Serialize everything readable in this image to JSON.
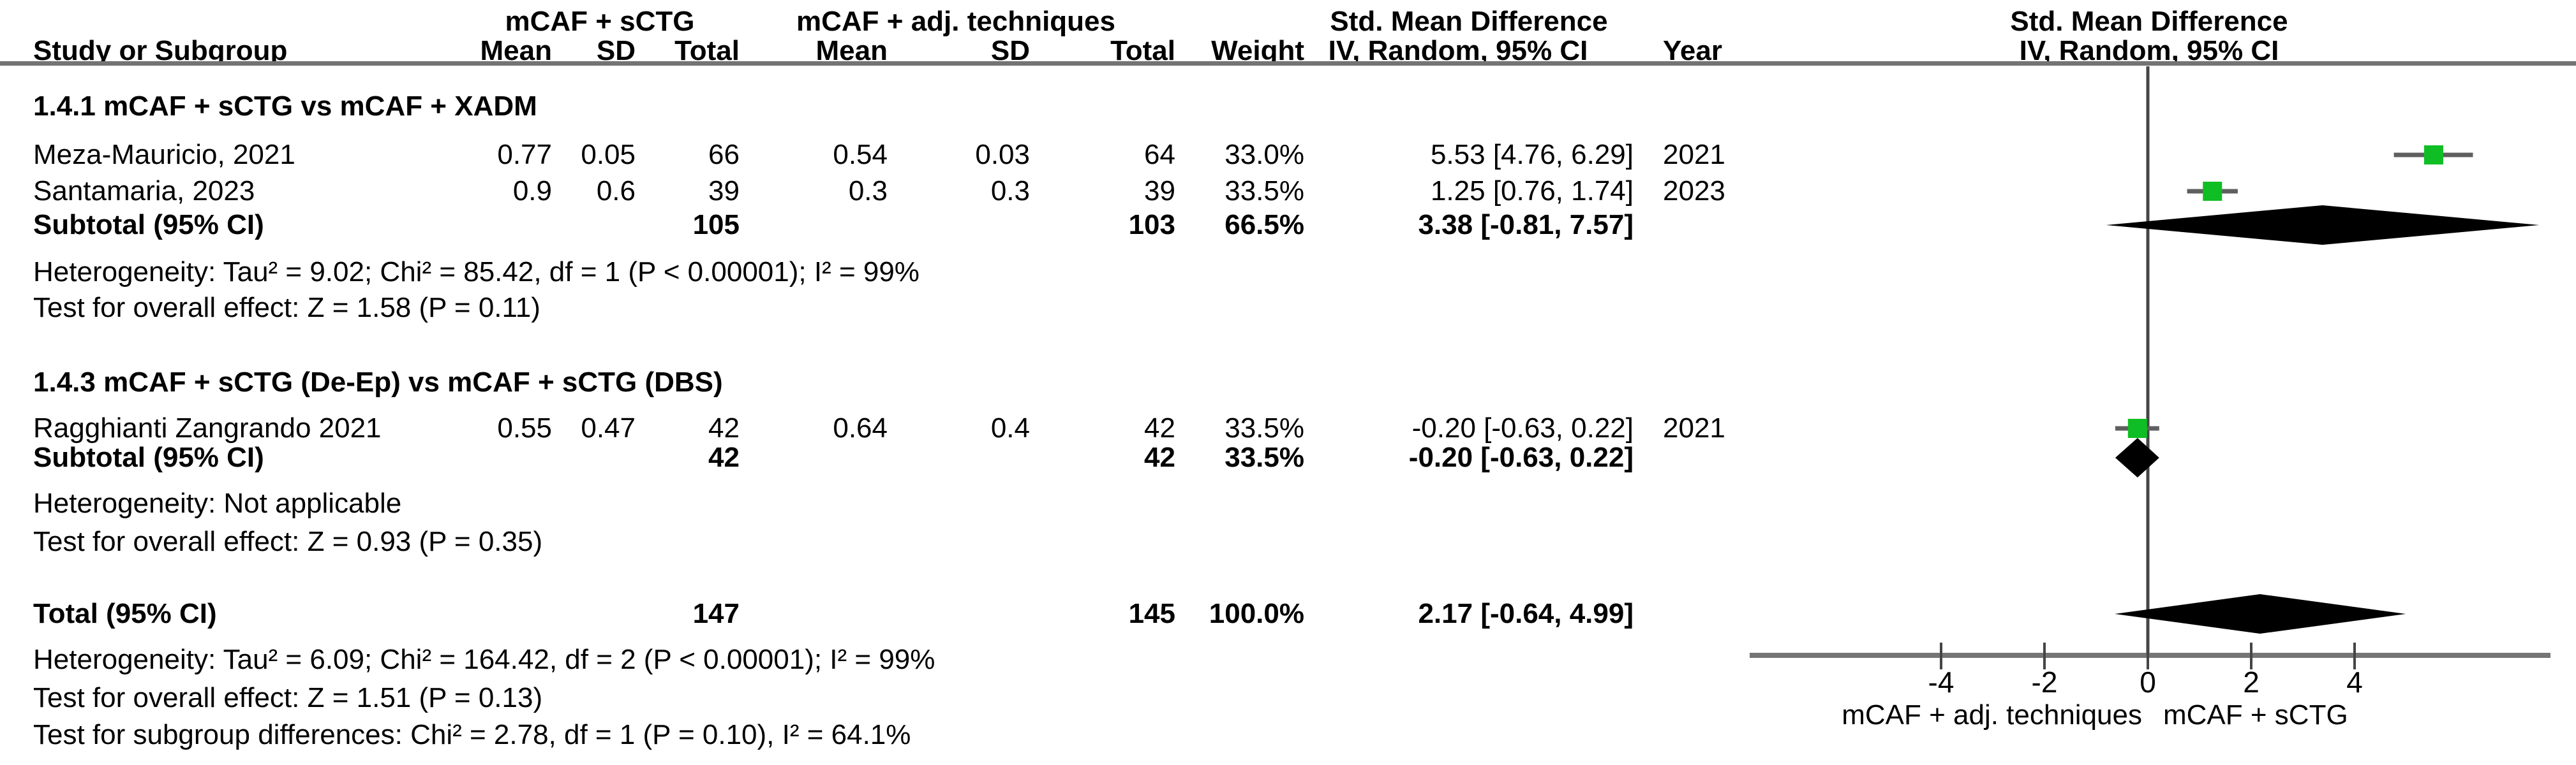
{
  "header": {
    "group1": "mCAF + sCTG",
    "group2": "mCAF + adj. techniques",
    "smd_table": "Std. Mean Difference",
    "smd_plot": "Std. Mean Difference",
    "col_study": "Study or Subgroup",
    "col_mean1": "Mean",
    "col_sd1": "SD",
    "col_total1": "Total",
    "col_mean2": "Mean",
    "col_sd2": "SD",
    "col_total2": "Total",
    "col_weight": "Weight",
    "col_iv": "IV, Random, 95% CI",
    "col_year": "Year",
    "col_iv_plot": "IV, Random, 95% CI"
  },
  "table": {
    "heading_141": "1.4.1 mCAF + sCTG vs mCAF + XADM",
    "meza": {
      "study": "Meza-Mauricio, 2021",
      "mean1": "0.77",
      "sd1": "0.05",
      "total1": "66",
      "mean2": "0.54",
      "sd2": "0.03",
      "total2": "64",
      "weight": "33.0%",
      "ci": "5.53 [4.76, 6.29]",
      "year": "2021"
    },
    "santamaria": {
      "study": "Santamaria, 2023",
      "mean1": "0.9",
      "sd1": "0.6",
      "total1": "39",
      "mean2": "0.3",
      "sd2": "0.3",
      "total2": "39",
      "weight": "33.5%",
      "ci": "1.25 [0.76, 1.74]",
      "year": "2023"
    },
    "subtotal1": {
      "label": "Subtotal (95% CI)",
      "total1": "105",
      "total2": "103",
      "weight": "66.5%",
      "ci": "3.38 [-0.81, 7.57]"
    },
    "het1": "Heterogeneity: Tau² = 9.02; Chi² = 85.42, df = 1 (P < 0.00001); I² = 99%",
    "test1": "Test for overall effect: Z = 1.58 (P = 0.11)",
    "heading_143": "1.4.3 mCAF + sCTG (De-Ep) vs mCAF + sCTG (DBS)",
    "ragghianti": {
      "study": "Ragghianti Zangrando 2021",
      "mean1": "0.55",
      "sd1": "0.47",
      "total1": "42",
      "mean2": "0.64",
      "sd2": "0.4",
      "total2": "42",
      "weight": "33.5%",
      "ci": "-0.20 [-0.63, 0.22]",
      "year": "2021"
    },
    "subtotal2": {
      "label": "Subtotal (95% CI)",
      "total1": "42",
      "total2": "42",
      "weight": "33.5%",
      "ci": "-0.20 [-0.63, 0.22]"
    },
    "het2": "Heterogeneity: Not applicable",
    "test2": "Test for overall effect: Z = 0.93 (P = 0.35)",
    "total_row": {
      "label": "Total (95% CI)",
      "total1": "147",
      "total2": "145",
      "weight": "100.0%",
      "ci": "2.17 [-0.64, 4.99]"
    },
    "het3": "Heterogeneity: Tau² = 6.09; Chi² = 164.42, df = 2 (P < 0.00001); I² = 99%",
    "test3": "Test for overall effect: Z = 1.51 (P = 0.13)",
    "subgroup_diff": "Test for subgroup differences: Chi² = 2.78, df = 1 (P = 0.10), I² = 64.1%"
  },
  "chart_data": {
    "type": "forest",
    "effect_measure": "Std. Mean Difference, IV, Random, 95% CI",
    "x_ticks": [
      -4,
      -2,
      0,
      2,
      4
    ],
    "x_range": [
      -7.7,
      7.8
    ],
    "zero_line": 0,
    "favours_left": "mCAF + adj. techniques",
    "favours_right": "mCAF + sCTG",
    "marker_color": "#0fbe24",
    "series": [
      {
        "id": "meza",
        "label": "Meza-Mauricio, 2021",
        "type": "study",
        "est": 5.53,
        "lo": 4.76,
        "hi": 6.29,
        "weight_pct": 33.0
      },
      {
        "id": "santamaria",
        "label": "Santamaria, 2023",
        "type": "study",
        "est": 1.25,
        "lo": 0.76,
        "hi": 1.74,
        "weight_pct": 33.5
      },
      {
        "id": "subtotal1",
        "label": "Subtotal (95% CI)",
        "type": "diamond",
        "est": 3.38,
        "lo": -0.81,
        "hi": 7.57
      },
      {
        "id": "ragghianti",
        "label": "Ragghianti Zangrando 2021",
        "type": "study",
        "est": -0.2,
        "lo": -0.63,
        "hi": 0.22,
        "weight_pct": 33.5
      },
      {
        "id": "subtotal2",
        "label": "Subtotal (95% CI)",
        "type": "diamond",
        "est": -0.2,
        "lo": -0.63,
        "hi": 0.22
      },
      {
        "id": "total",
        "label": "Total (95% CI)",
        "type": "diamond",
        "est": 2.17,
        "lo": -0.64,
        "hi": 4.99
      }
    ]
  }
}
